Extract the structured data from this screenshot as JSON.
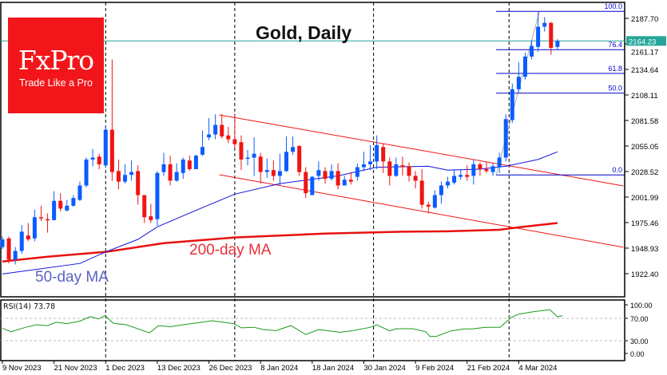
{
  "title": "Gold, Daily",
  "logo": {
    "brand": "FxPro",
    "tagline": "Trade Like a Pro"
  },
  "annotations": {
    "ma200": "200-day MA",
    "ma50": "50-day MA"
  },
  "colors": {
    "bull": "#0a5cff",
    "bear": "#f01414",
    "ma50": "#1010e0",
    "ma200": "#e81010",
    "channel": "#f01414",
    "fib": "#0000cc",
    "price_tag": "#26a69a",
    "rsi": "#1a9a1a"
  },
  "chart_data": {
    "type": "candlestick",
    "title": "Gold, Daily",
    "ylim": [
      1908,
      2204
    ],
    "y_ticks": [
      "2187.70",
      "2161.17",
      "2134.64",
      "2108.11",
      "2081.58",
      "2055.05",
      "2028.52",
      "2001.99",
      "1975.46",
      "1948.93",
      "1922.40"
    ],
    "x_ticks": [
      {
        "label": "9 Nov 2023",
        "at": 0
      },
      {
        "label": "21 Nov 2023",
        "at": 8
      },
      {
        "label": "1 Dec 2023",
        "at": 16
      },
      {
        "label": "13 Dec 2023",
        "at": 24
      },
      {
        "label": "26 Dec 2023",
        "at": 32
      },
      {
        "label": "8 Jan 2024",
        "at": 40
      },
      {
        "label": "18 Jan 2024",
        "at": 48
      },
      {
        "label": "30 Jan 2024",
        "at": 56
      },
      {
        "label": "9 Feb 2024",
        "at": 64
      },
      {
        "label": "21 Feb 2024",
        "at": 72
      },
      {
        "label": "4 Mar 2024",
        "at": 80
      }
    ],
    "period_separators": [
      16,
      36,
      57.5,
      78.5
    ],
    "current_price": "2164.23",
    "ohlc": [
      [
        1950,
        1961,
        1948,
        1958
      ],
      [
        1959,
        1961,
        1933,
        1937
      ],
      [
        1937,
        1950,
        1932,
        1946
      ],
      [
        1946,
        1973,
        1943,
        1966
      ],
      [
        1962,
        1975,
        1956,
        1958
      ],
      [
        1959,
        1989,
        1956,
        1981
      ],
      [
        1981,
        1993,
        1977,
        1980
      ],
      [
        1979,
        1985,
        1965,
        1978
      ],
      [
        1978,
        2008,
        1978,
        1998
      ],
      [
        1998,
        2006,
        1987,
        1990
      ],
      [
        1988,
        1999,
        1987,
        1993
      ],
      [
        1993,
        2004,
        1992,
        2001
      ],
      [
        1999,
        2018,
        1998,
        2014
      ],
      [
        2014,
        2043,
        2012,
        2041
      ],
      [
        2041,
        2052,
        2034,
        2043
      ],
      [
        2044,
        2047,
        2031,
        2036
      ],
      [
        2035,
        2076,
        2033,
        2072
      ],
      [
        2072,
        2145,
        2019,
        2028
      ],
      [
        2029,
        2041,
        2010,
        2018
      ],
      [
        2018,
        2036,
        2016,
        2025
      ],
      [
        2025,
        2040,
        2019,
        2028
      ],
      [
        2029,
        2035,
        1994,
        2004
      ],
      [
        2004,
        2004,
        1975,
        1981
      ],
      [
        1982,
        1995,
        1975,
        1978
      ],
      [
        1979,
        2029,
        1972,
        2027
      ],
      [
        2028,
        2048,
        2024,
        2036
      ],
      [
        2036,
        2045,
        2014,
        2019
      ],
      [
        2019,
        2037,
        2018,
        2028
      ],
      [
        2027,
        2043,
        2021,
        2041
      ],
      [
        2040,
        2045,
        2029,
        2031
      ],
      [
        2031,
        2046,
        2031,
        2045
      ],
      [
        2046,
        2071,
        2045,
        2054
      ],
      [
        2064,
        2084,
        2061,
        2067
      ],
      [
        2067,
        2088,
        2062,
        2077
      ],
      [
        2077,
        2088,
        2063,
        2065
      ],
      [
        2066,
        2075,
        2058,
        2062
      ],
      [
        2062,
        2087,
        2053,
        2057
      ],
      [
        2059,
        2066,
        2030,
        2041
      ],
      [
        2042,
        2051,
        2035,
        2043
      ],
      [
        2043,
        2064,
        2024,
        2047
      ],
      [
        2044,
        2048,
        2016,
        2028
      ],
      [
        2028,
        2042,
        2022,
        2030
      ],
      [
        2030,
        2040,
        2019,
        2024
      ],
      [
        2024,
        2047,
        2014,
        2029
      ],
      [
        2029,
        2065,
        2028,
        2049
      ],
      [
        2049,
        2065,
        2046,
        2054
      ],
      [
        2055,
        2056,
        2024,
        2028
      ],
      [
        2028,
        2033,
        2001,
        2006
      ],
      [
        2004,
        2024,
        2004,
        2023
      ],
      [
        2024,
        2039,
        2019,
        2030
      ],
      [
        2029,
        2033,
        2016,
        2021
      ],
      [
        2021,
        2036,
        2019,
        2029
      ],
      [
        2029,
        2037,
        2010,
        2014
      ],
      [
        2014,
        2024,
        2014,
        2020
      ],
      [
        2020,
        2028,
        2015,
        2018
      ],
      [
        2023,
        2037,
        2019,
        2033
      ],
      [
        2033,
        2049,
        2029,
        2036
      ],
      [
        2036,
        2056,
        2030,
        2039
      ],
      [
        2039,
        2066,
        2031,
        2056
      ],
      [
        2054,
        2058,
        2027,
        2039
      ],
      [
        2039,
        2043,
        2014,
        2024
      ],
      [
        2024,
        2043,
        2023,
        2036
      ],
      [
        2035,
        2044,
        2024,
        2033
      ],
      [
        2034,
        2038,
        2018,
        2024
      ],
      [
        2024,
        2029,
        2011,
        2019
      ],
      [
        2019,
        2031,
        1990,
        1994
      ],
      [
        1994,
        1997,
        1985,
        1992
      ],
      [
        1991,
        2009,
        1990,
        2004
      ],
      [
        2004,
        2018,
        1995,
        2014
      ],
      [
        2014,
        2023,
        2011,
        2018
      ],
      [
        2017,
        2031,
        2015,
        2024
      ],
      [
        2023,
        2031,
        2020,
        2025
      ],
      [
        2025,
        2035,
        2019,
        2023
      ],
      [
        2024,
        2041,
        2015,
        2036
      ],
      [
        2036,
        2038,
        2024,
        2031
      ],
      [
        2031,
        2039,
        2027,
        2029
      ],
      [
        2028,
        2037,
        2024,
        2034
      ],
      [
        2033,
        2048,
        2027,
        2043
      ],
      [
        2043,
        2088,
        2039,
        2083
      ],
      [
        2082,
        2120,
        2079,
        2114
      ],
      [
        2114,
        2142,
        2111,
        2127
      ],
      [
        2127,
        2152,
        2124,
        2148
      ],
      [
        2148,
        2165,
        2145,
        2159
      ],
      [
        2158,
        2194,
        2153,
        2179
      ],
      [
        2179,
        2189,
        2174,
        2183
      ],
      [
        2183,
        2184,
        2150,
        2157
      ],
      [
        2158,
        2166,
        2155,
        2164.23
      ]
    ],
    "ma50": [
      [
        0,
        1922
      ],
      [
        12,
        1933
      ],
      [
        16,
        1945
      ],
      [
        21,
        1958
      ],
      [
        24,
        1971
      ],
      [
        31,
        1991
      ],
      [
        36,
        2005
      ],
      [
        43,
        2016
      ],
      [
        52,
        2024
      ],
      [
        58,
        2033
      ],
      [
        66,
        2034
      ],
      [
        69,
        2030
      ],
      [
        74,
        2031
      ],
      [
        78,
        2034
      ],
      [
        83,
        2041
      ],
      [
        86,
        2049
      ]
    ],
    "ma200": [
      [
        0,
        1935
      ],
      [
        7,
        1940
      ],
      [
        16,
        1945
      ],
      [
        25,
        1954
      ],
      [
        36,
        1960
      ],
      [
        50,
        1964
      ],
      [
        62,
        1966
      ],
      [
        69,
        1966.4
      ],
      [
        77,
        1968
      ],
      [
        80,
        1970.5
      ],
      [
        86,
        1975
      ]
    ],
    "channel": [
      {
        "from": [
          33.6,
          2087.4
        ],
        "to": [
          96.2,
          2013.6
        ]
      },
      {
        "from": [
          33.6,
          2025.2
        ],
        "to": [
          96.2,
          1949.8
        ]
      }
    ],
    "fibonacci": {
      "from_index": 76.5,
      "anchor_low": [
        76.5,
        2025.0
      ],
      "anchor_high": [
        83.2,
        2195.0
      ],
      "levels": [
        {
          "label": "100.0",
          "price": 2195.0
        },
        {
          "label": "76.4",
          "price": 2155.2
        },
        {
          "label": "61.8",
          "price": 2130.5
        },
        {
          "label": "50.0",
          "price": 2110.0
        },
        {
          "label": "0.0",
          "price": 2025.0
        }
      ]
    },
    "rsi": {
      "label": "RSI(14) 73.78",
      "period": 14,
      "last": 73.78,
      "ylim": [
        0,
        100
      ],
      "y_ticks": [
        "100.00",
        "70.00",
        "30.00",
        "0.00"
      ],
      "levels": [
        70,
        30
      ],
      "points": [
        [
          0,
          52.4
        ],
        [
          1.3,
          46
        ],
        [
          3.6,
          54
        ],
        [
          5.3,
          58.6
        ],
        [
          7,
          57
        ],
        [
          8.3,
          63
        ],
        [
          10,
          60.5
        ],
        [
          12,
          65
        ],
        [
          13.6,
          73
        ],
        [
          14.9,
          69
        ],
        [
          15.9,
          75
        ],
        [
          17.2,
          61
        ],
        [
          19.2,
          58.6
        ],
        [
          22.8,
          44
        ],
        [
          24.2,
          57
        ],
        [
          26,
          55
        ],
        [
          28,
          58.6
        ],
        [
          32.5,
          65.7
        ],
        [
          35.8,
          60.5
        ],
        [
          37,
          53
        ],
        [
          39,
          54
        ],
        [
          40.4,
          50
        ],
        [
          42.4,
          48
        ],
        [
          44.7,
          57
        ],
        [
          47,
          41
        ],
        [
          49,
          50
        ],
        [
          50.3,
          48
        ],
        [
          52.3,
          45
        ],
        [
          54.3,
          48
        ],
        [
          57,
          54
        ],
        [
          58,
          58.6
        ],
        [
          60,
          47.6
        ],
        [
          61,
          51.4
        ],
        [
          63.6,
          51.4
        ],
        [
          65.6,
          46
        ],
        [
          66.2,
          38
        ],
        [
          67.2,
          37.6
        ],
        [
          69.5,
          47.6
        ],
        [
          71.5,
          51
        ],
        [
          72.8,
          51
        ],
        [
          74.8,
          54
        ],
        [
          77.1,
          54
        ],
        [
          78.8,
          71.4
        ],
        [
          80,
          77.6
        ],
        [
          82,
          81.4
        ],
        [
          84.8,
          85.7
        ],
        [
          86,
          72.9
        ],
        [
          86.8,
          74.8
        ]
      ]
    }
  }
}
